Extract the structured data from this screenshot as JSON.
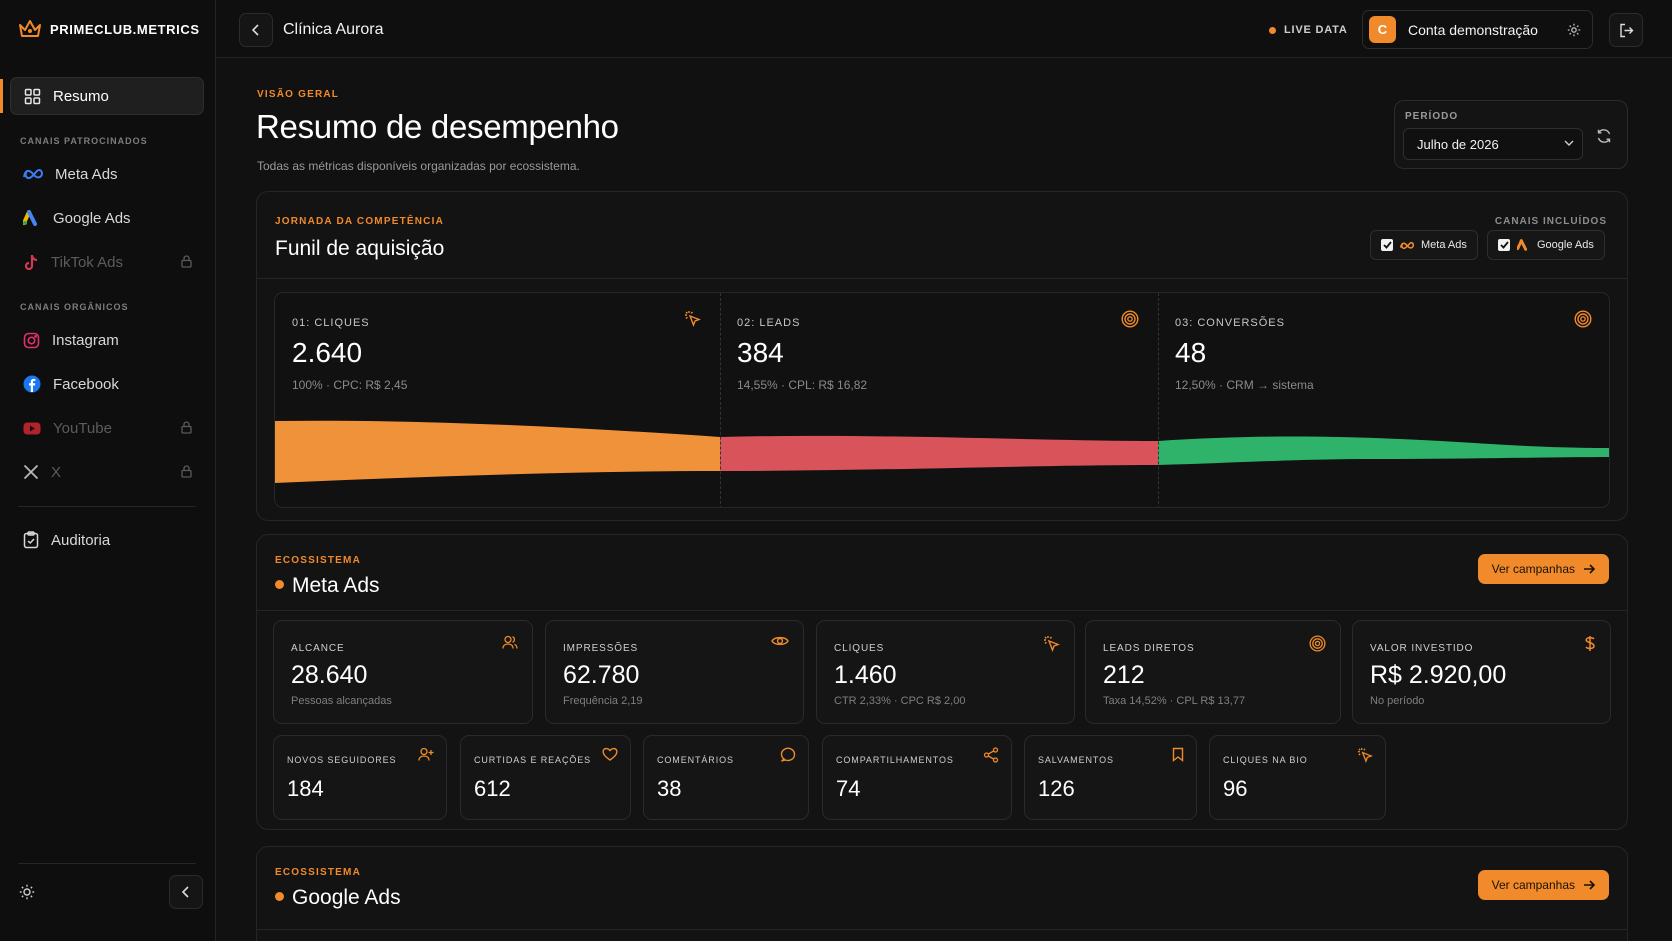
{
  "brand": {
    "name": "PRIMECLUB.METRICS",
    "accent": "#f08a2b"
  },
  "sidebar": {
    "resumo": "Resumo",
    "sponsored_label": "CANAIS PATROCINADOS",
    "sponsored": [
      {
        "label": "Meta Ads",
        "icon": "meta-icon",
        "locked": false
      },
      {
        "label": "Google Ads",
        "icon": "google-ads-icon",
        "locked": false
      },
      {
        "label": "TikTok Ads",
        "icon": "tiktok-icon",
        "locked": true
      }
    ],
    "organic_label": "CANAIS ORGÂNICOS",
    "organic": [
      {
        "label": "Instagram",
        "icon": "instagram-icon",
        "locked": false
      },
      {
        "label": "Facebook",
        "icon": "facebook-icon",
        "locked": false
      },
      {
        "label": "YouTube",
        "icon": "youtube-icon",
        "locked": true
      },
      {
        "label": "X",
        "icon": "x-icon",
        "locked": true
      }
    ],
    "audit": "Auditoria"
  },
  "topbar": {
    "client": "Clínica Aurora",
    "live": "LIVE DATA",
    "avatar_letter": "C",
    "account": "Conta demonstração"
  },
  "header": {
    "eyebrow": "VISÃO GERAL",
    "title": "Resumo de desempenho",
    "subtitle": "Todas as métricas disponíveis organizadas por ecossistema."
  },
  "period": {
    "label": "PERÍODO",
    "value": "Julho de 2026"
  },
  "funnel": {
    "eyebrow": "JORNADA DA COMPETÊNCIA",
    "title": "Funil de aquisição",
    "channels_label": "CANAIS INCLUÍDOS",
    "channels": [
      "Meta Ads",
      "Google Ads"
    ],
    "stages": [
      {
        "label": "01: CLIQUES",
        "value": "2.640",
        "sub": "100% · CPC: R$ 2,45",
        "color": "#f0923a",
        "icon": "cursor-click-icon"
      },
      {
        "label": "02: LEADS",
        "value": "384",
        "sub": "14,55% · CPL: R$ 16,82",
        "color": "#d9545a",
        "icon": "target-icon"
      },
      {
        "label": "03: CONVERSÕES",
        "value": "48",
        "sub": "12,50% · CRM → sistema",
        "color": "#2fb36a",
        "icon": "target-icon"
      }
    ]
  },
  "meta_section": {
    "eyebrow": "ECOSSISTEMA",
    "title": "Meta Ads",
    "button": "Ver campanhas",
    "cards": [
      {
        "label": "ALCANCE",
        "value": "28.640",
        "sub": "Pessoas alcançadas",
        "icon": "users-icon"
      },
      {
        "label": "IMPRESSÕES",
        "value": "62.780",
        "sub": "Frequência 2,19",
        "icon": "eye-icon"
      },
      {
        "label": "CLIQUES",
        "value": "1.460",
        "sub": "CTR 2,33% · CPC R$ 2,00",
        "icon": "cursor-click-icon"
      },
      {
        "label": "LEADS DIRETOS",
        "value": "212",
        "sub": "Taxa 14,52% · CPL R$ 13,77",
        "icon": "target-icon"
      },
      {
        "label": "VALOR INVESTIDO",
        "value": "R$ 2.920,00",
        "sub": "No período",
        "icon": "dollar-icon"
      }
    ],
    "small_cards": [
      {
        "label": "NOVOS SEGUIDORES",
        "value": "184",
        "icon": "user-plus-icon"
      },
      {
        "label": "CURTIDAS E REAÇÕES",
        "value": "612",
        "icon": "heart-icon"
      },
      {
        "label": "COMENTÁRIOS",
        "value": "38",
        "icon": "comment-icon"
      },
      {
        "label": "COMPARTILHAMENTOS",
        "value": "74",
        "icon": "share-icon"
      },
      {
        "label": "SALVAMENTOS",
        "value": "126",
        "icon": "bookmark-icon"
      },
      {
        "label": "CLIQUES NA BIO",
        "value": "96",
        "icon": "cursor-click-icon"
      }
    ]
  },
  "google_section": {
    "eyebrow": "ECOSSISTEMA",
    "title": "Google Ads",
    "button": "Ver campanhas"
  }
}
